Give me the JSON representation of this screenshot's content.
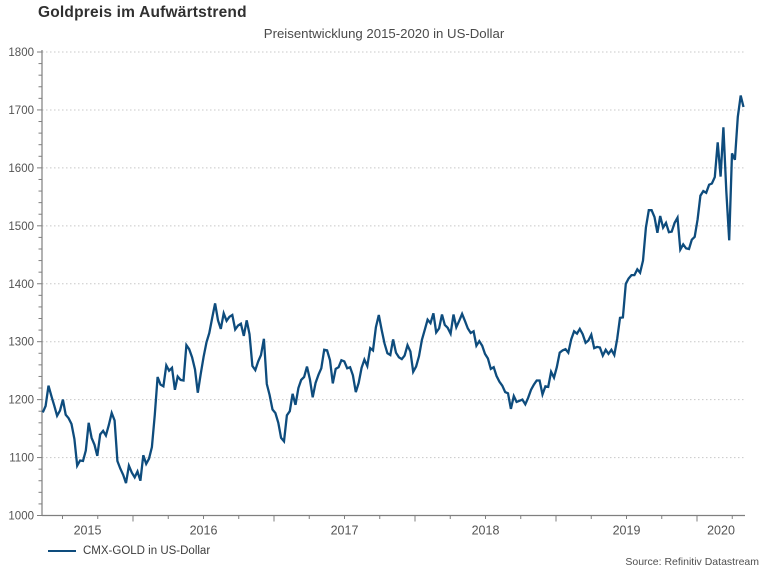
{
  "chart_data": {
    "type": "line",
    "title": "Goldpreis im Aufwärtstrend",
    "subtitle": "Preisentwicklung 2015-2020 in US-Dollar",
    "source": "Source: Refinitiv Datastream",
    "xlabel": "",
    "ylabel": "",
    "ylim": [
      1000,
      1800
    ],
    "y_tick_step": 100,
    "y_minor_step": 20,
    "y_tick_labels": [
      "1000",
      "1100",
      "1200",
      "1300",
      "1400",
      "1500",
      "1600",
      "1700",
      "1800"
    ],
    "x_tick_labels": [
      "2015",
      "2016",
      "2017",
      "2018",
      "2019",
      "2020"
    ],
    "x_minor_tick_unit": "quarter",
    "grid": "horizontal-dotted",
    "legend_position": "bottom-left",
    "colors": {
      "line": "#0e4c7d",
      "grid": "#c8c8c8",
      "axis": "#7f7f7f",
      "tick_text": "#545454",
      "title_text": "#303030",
      "subtitle_text": "#4a4a4a"
    },
    "series": [
      {
        "name": "CMX-GOLD in US-Dollar",
        "color": "#0e4c7d",
        "unit": "US-Dollar",
        "x_start_year": 2015.36,
        "x_end_year": 2020.33,
        "sampling": "weekly (approx.)",
        "values": [
          1178,
          1189,
          1224,
          1206,
          1190,
          1172,
          1181,
          1200,
          1174,
          1168,
          1158,
          1132,
          1086,
          1095,
          1094,
          1112,
          1160,
          1134,
          1122,
          1103,
          1140,
          1146,
          1138,
          1156,
          1177,
          1164,
          1094,
          1081,
          1070,
          1056,
          1086,
          1074,
          1066,
          1076,
          1060,
          1104,
          1089,
          1098,
          1118,
          1174,
          1239,
          1226,
          1223,
          1259,
          1250,
          1255,
          1217,
          1240,
          1234,
          1233,
          1294,
          1287,
          1273,
          1252,
          1212,
          1244,
          1274,
          1299,
          1315,
          1341,
          1366,
          1337,
          1322,
          1349,
          1336,
          1343,
          1346,
          1321,
          1328,
          1331,
          1310,
          1337,
          1313,
          1258,
          1251,
          1266,
          1277,
          1305,
          1227,
          1208,
          1183,
          1177,
          1160,
          1134,
          1128,
          1173,
          1180,
          1210,
          1191,
          1220,
          1234,
          1239,
          1257,
          1235,
          1204,
          1229,
          1243,
          1254,
          1286,
          1285,
          1268,
          1228,
          1253,
          1256,
          1268,
          1266,
          1254,
          1256,
          1242,
          1213,
          1229,
          1255,
          1269,
          1258,
          1289,
          1285,
          1325,
          1346,
          1320,
          1297,
          1280,
          1277,
          1304,
          1281,
          1273,
          1270,
          1276,
          1294,
          1283,
          1248,
          1257,
          1275,
          1303,
          1320,
          1338,
          1332,
          1349,
          1316,
          1323,
          1347,
          1329,
          1324,
          1314,
          1347,
          1325,
          1336,
          1348,
          1336,
          1323,
          1315,
          1318,
          1293,
          1301,
          1293,
          1279,
          1271,
          1253,
          1256,
          1241,
          1231,
          1224,
          1213,
          1211,
          1184,
          1206,
          1196,
          1198,
          1200,
          1192,
          1203,
          1217,
          1226,
          1233,
          1233,
          1209,
          1223,
          1222,
          1248,
          1238,
          1256,
          1281,
          1285,
          1287,
          1281,
          1304,
          1318,
          1314,
          1322,
          1313,
          1298,
          1302,
          1312,
          1289,
          1291,
          1290,
          1276,
          1286,
          1279,
          1286,
          1277,
          1305,
          1341,
          1342,
          1400,
          1409,
          1415,
          1415,
          1425,
          1419,
          1440,
          1497,
          1527,
          1527,
          1515,
          1488,
          1517,
          1497,
          1505,
          1489,
          1490,
          1505,
          1514,
          1459,
          1468,
          1461,
          1460,
          1476,
          1481,
          1511,
          1552,
          1560,
          1557,
          1571,
          1573,
          1584,
          1644,
          1585,
          1670,
          1560,
          1475,
          1625,
          1614,
          1688,
          1725,
          1705
        ]
      }
    ]
  }
}
